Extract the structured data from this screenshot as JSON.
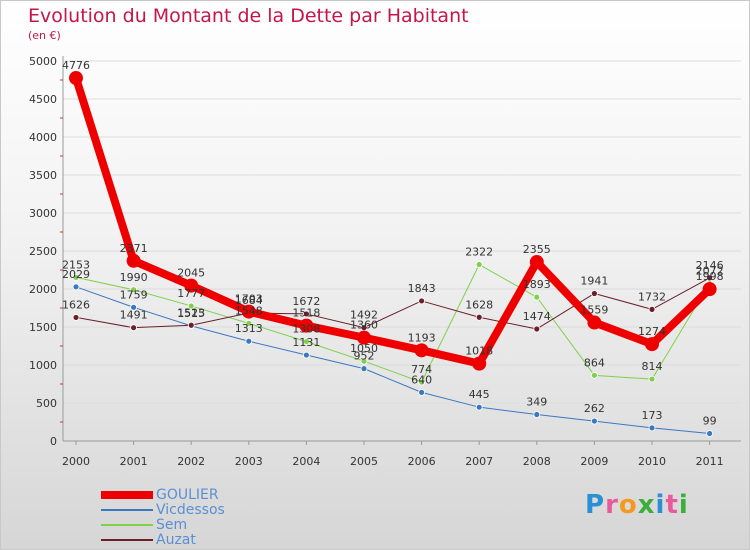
{
  "title": "Evolution du Montant de la Dette par Habitant",
  "subtitle": "(en €)",
  "logo_text": "Proxiti",
  "chart_data": {
    "type": "line",
    "title": "Evolution du Montant de la Dette par Habitant",
    "ylabel": "(en €)",
    "xlabel": "",
    "ylim": [
      0,
      5000
    ],
    "yticks": [
      0,
      500,
      1000,
      1500,
      2000,
      2500,
      3000,
      3500,
      4000,
      4500,
      5000
    ],
    "categories": [
      "2000",
      "2001",
      "2002",
      "2003",
      "2004",
      "2005",
      "2006",
      "2007",
      "2008",
      "2009",
      "2010",
      "2011"
    ],
    "legend_position": "bottom-left",
    "series": [
      {
        "name": "Vicdessos",
        "color": "#3a78c2",
        "width": 1,
        "values": [
          2029,
          1759,
          1515,
          1313,
          1131,
          952,
          640,
          445,
          349,
          262,
          173,
          99
        ]
      },
      {
        "name": "Sem",
        "color": "#7fd04a",
        "width": 1,
        "values": [
          2153,
          1990,
          1777,
          1548,
          1308,
          1050,
          774,
          2322,
          1893,
          864,
          814,
          2072
        ]
      },
      {
        "name": "Auzat",
        "color": "#6b1f2a",
        "width": 1,
        "values": [
          1626,
          1491,
          1523,
          1684,
          1672,
          1492,
          1843,
          1628,
          1474,
          1941,
          1732,
          2146
        ]
      },
      {
        "name": "GOULIER",
        "color": "#ee0000",
        "width": 8,
        "values": [
          4776,
          2371,
          2045,
          1703,
          1518,
          1360,
          1193,
          1018,
          2355,
          1559,
          1274,
          1998
        ]
      }
    ],
    "legend_order": [
      "GOULIER",
      "Vicdessos",
      "Sem",
      "Auzat"
    ]
  }
}
